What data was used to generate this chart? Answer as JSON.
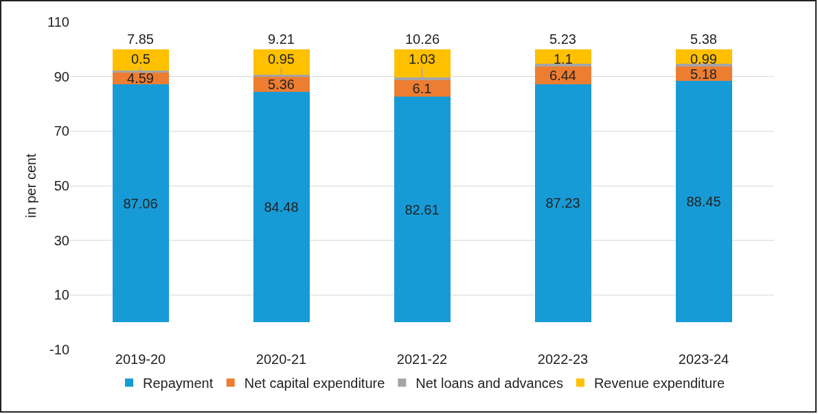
{
  "chart_data": {
    "type": "bar",
    "stacked": true,
    "ylabel": "in per cent",
    "categories": [
      "2019-20",
      "2020-21",
      "2021-22",
      "2022-23",
      "2023-24"
    ],
    "series": [
      {
        "name": "Repayment",
        "color": "#179bd7",
        "values": [
          87.06,
          84.48,
          82.61,
          87.23,
          88.45
        ]
      },
      {
        "name": "Net capital expenditure",
        "color": "#ed7d31",
        "values": [
          4.59,
          5.36,
          6.1,
          6.44,
          5.18
        ]
      },
      {
        "name": "Net loans and advances",
        "color": "#a5a5a5",
        "values": [
          0.5,
          0.95,
          1.03,
          1.1,
          0.99
        ]
      },
      {
        "name": "Revenue expenditure",
        "color": "#ffc000",
        "values": [
          7.85,
          9.21,
          10.26,
          5.23,
          5.38
        ]
      }
    ],
    "ylim": [
      -10,
      110
    ],
    "yticks": [
      -10,
      10,
      30,
      50,
      70,
      90,
      110
    ],
    "grid": "y",
    "legend": "bottom",
    "data_labels": true
  }
}
